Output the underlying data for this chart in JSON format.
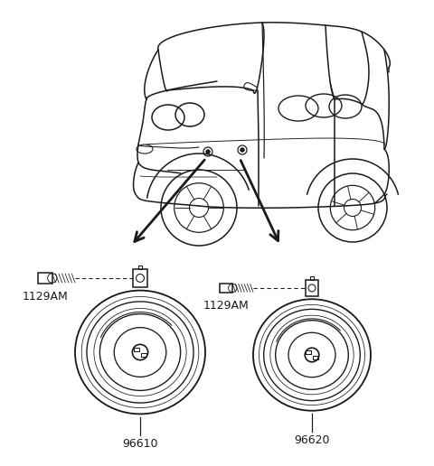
{
  "background_color": "#ffffff",
  "figsize": [
    4.8,
    5.16
  ],
  "dpi": 100,
  "part_labels": {
    "left_bolt": "1129AM",
    "left_horn": "96610",
    "right_bolt": "1129AM",
    "right_horn": "96620"
  },
  "line_color": "#1a1a1a",
  "text_color": "#1a1a1a",
  "font_size_label": 9
}
